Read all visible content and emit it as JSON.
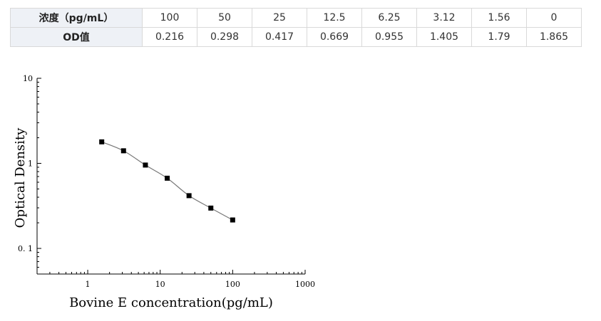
{
  "table": {
    "row1_header": "浓度（pg/mL）",
    "row2_header": "OD值",
    "concentrations": [
      "100",
      "50",
      "25",
      "12.5",
      "6.25",
      "3.12",
      "1.56",
      "0"
    ],
    "od_values": [
      "0.216",
      "0.298",
      "0.417",
      "0.669",
      "0.955",
      "1.405",
      "1.79",
      "1.865"
    ]
  },
  "chart_data": {
    "type": "scatter",
    "xlabel": "Bovine E concentration(pg/mL)",
    "ylabel": "Optical Density",
    "xscale": "log",
    "yscale": "log",
    "xlim": [
      0.2,
      1000
    ],
    "ylim": [
      0.05,
      10
    ],
    "x_ticks": [
      "1",
      "10",
      "100",
      "1000"
    ],
    "y_ticks": [
      "10",
      "1",
      "0. 1"
    ],
    "points": [
      {
        "x": 100,
        "y": 0.216
      },
      {
        "x": 50,
        "y": 0.298
      },
      {
        "x": 25,
        "y": 0.417
      },
      {
        "x": 12.5,
        "y": 0.669
      },
      {
        "x": 6.25,
        "y": 0.955
      },
      {
        "x": 3.12,
        "y": 1.405
      },
      {
        "x": 1.56,
        "y": 1.79
      }
    ],
    "fit_line": true
  }
}
